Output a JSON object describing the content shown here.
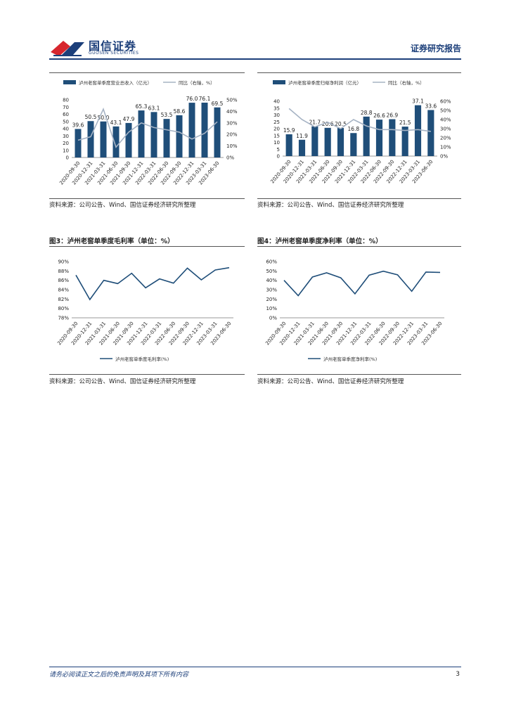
{
  "header": {
    "company_cn": "国信证券",
    "company_en": "GUOSEN SECURITIES",
    "doc_type": "证券研究报告"
  },
  "figures": [
    {
      "title": "",
      "source": "资料来源：公司公告、Wind、国信证券经济研究所整理"
    },
    {
      "title": "",
      "source": "资料来源：公司公告、Wind、国信证券经济研究所整理"
    },
    {
      "title": "图3：泸州老窖单季度毛利率（单位：%）",
      "source": "资料来源：公司公告、Wind、国信证券经济研究所整理"
    },
    {
      "title": "图4：泸州老窖单季度净利率（单位：%）",
      "source": "资料来源：公司公告、Wind、国信证券经济研究所整理"
    }
  ],
  "chart_data": [
    {
      "type": "bar",
      "categories": [
        "2020-09-30",
        "2020-12-31",
        "2021-03-31",
        "2021-06-30",
        "2021-09-30",
        "2021-12-31",
        "2022-03-31",
        "2022-06-30",
        "2022-09-30",
        "2022-12-31",
        "2023-03-31",
        "2023-06-30"
      ],
      "series": [
        {
          "name": "泸州老窖单季度营业总收入（亿元）",
          "values": [
            39.6,
            50.5,
            50.0,
            43.1,
            47.9,
            65.3,
            63.1,
            53.5,
            58.6,
            76.0,
            76.1,
            69.5
          ],
          "axis": "left"
        },
        {
          "name": "同比（右轴，%）",
          "values": [
            15,
            18,
            42,
            9,
            22,
            30,
            26,
            24,
            22,
            16,
            21,
            31
          ],
          "axis": "right"
        }
      ],
      "ylim_left": [
        0,
        80
      ],
      "yticks_left": [
        "0",
        "10",
        "20",
        "30",
        "40",
        "50",
        "60",
        "70",
        "80"
      ],
      "ylim_right": [
        0,
        50
      ],
      "yticks_right": [
        "0%",
        "10%",
        "20%",
        "30%",
        "40%",
        "50%"
      ],
      "data_labels": [
        "39.6",
        "50.5",
        "50.0",
        "43.1",
        "47.9",
        "65.3",
        "63.1",
        "53.5",
        "58.6",
        "76.0",
        "76.1",
        "69.5"
      ],
      "legend_position": "top"
    },
    {
      "type": "bar",
      "categories": [
        "2020-09-30",
        "2020-12-31",
        "2021-03-31",
        "2021-06-30",
        "2021-09-30",
        "2021-12-31",
        "2022-03-31",
        "2022-06-30",
        "2022-09-30",
        "2022-12-31",
        "2023-03-31",
        "2023-06-30"
      ],
      "series": [
        {
          "name": "泸州老窖单季度归母净利润（亿元）",
          "values": [
            15.9,
            11.9,
            21.7,
            20.6,
            20.5,
            16.8,
            28.8,
            26.6,
            26.9,
            21.5,
            37.1,
            33.6
          ],
          "axis": "left"
        },
        {
          "name": "同比（右轴，%）",
          "values": [
            52,
            40,
            32,
            37,
            30,
            40,
            33,
            29,
            29,
            28,
            29,
            27
          ],
          "axis": "right"
        }
      ],
      "ylim_left": [
        0,
        40
      ],
      "yticks_left": [
        "0",
        "5",
        "10",
        "15",
        "20",
        "25",
        "30",
        "35",
        "40"
      ],
      "ylim_right": [
        0,
        60
      ],
      "yticks_right": [
        "0%",
        "10%",
        "20%",
        "30%",
        "40%",
        "50%",
        "60%"
      ],
      "data_labels": [
        "15.9",
        "11.9",
        "21.7",
        "20.6",
        "20.5",
        "16.8",
        "28.8",
        "26.6",
        "26.9",
        "21.5",
        "37.1",
        "33.6"
      ],
      "legend_position": "top"
    },
    {
      "type": "line",
      "categories": [
        "2020-09-30",
        "2020-12-31",
        "2021-03-31",
        "2021-06-30",
        "2021-09-30",
        "2021-12-31",
        "2022-03-31",
        "2022-06-30",
        "2022-09-30",
        "2022-12-31",
        "2023-03-31",
        "2023-06-30"
      ],
      "series": [
        {
          "name": "泸州老窖单季度毛利率(%)",
          "values": [
            87.1,
            81.9,
            86.0,
            85.3,
            87.5,
            84.4,
            86.3,
            85.4,
            88.6,
            86.1,
            88.2,
            88.7
          ]
        }
      ],
      "ylim": [
        78,
        90
      ],
      "yticks": [
        "78%",
        "80%",
        "82%",
        "84%",
        "86%",
        "88%",
        "90%"
      ],
      "legend_position": "bottom"
    },
    {
      "type": "line",
      "categories": [
        "2020-09-30",
        "2020-12-31",
        "2021-03-31",
        "2021-06-30",
        "2021-09-30",
        "2021-12-31",
        "2022-03-31",
        "2022-06-30",
        "2022-09-30",
        "2022-12-31",
        "2023-03-31",
        "2023-06-30"
      ],
      "series": [
        {
          "name": "泸州老窖单季度净利率(%)",
          "values": [
            40.0,
            23.6,
            43.5,
            48.0,
            42.7,
            25.6,
            45.5,
            49.7,
            45.9,
            28.3,
            48.8,
            48.4
          ]
        }
      ],
      "ylim": [
        0,
        60
      ],
      "yticks": [
        "0%",
        "10%",
        "20%",
        "30%",
        "40%",
        "50%",
        "60%"
      ],
      "legend_position": "bottom"
    }
  ],
  "footer": {
    "disclaimer": "请务必阅读正文之后的免责声明及其项下所有内容",
    "page": "3"
  },
  "colors": {
    "brand": "#1c3f7a",
    "bar": "#1f4e79",
    "yoy_line": "#a6b3c4",
    "logo_red": "#d7262e"
  }
}
